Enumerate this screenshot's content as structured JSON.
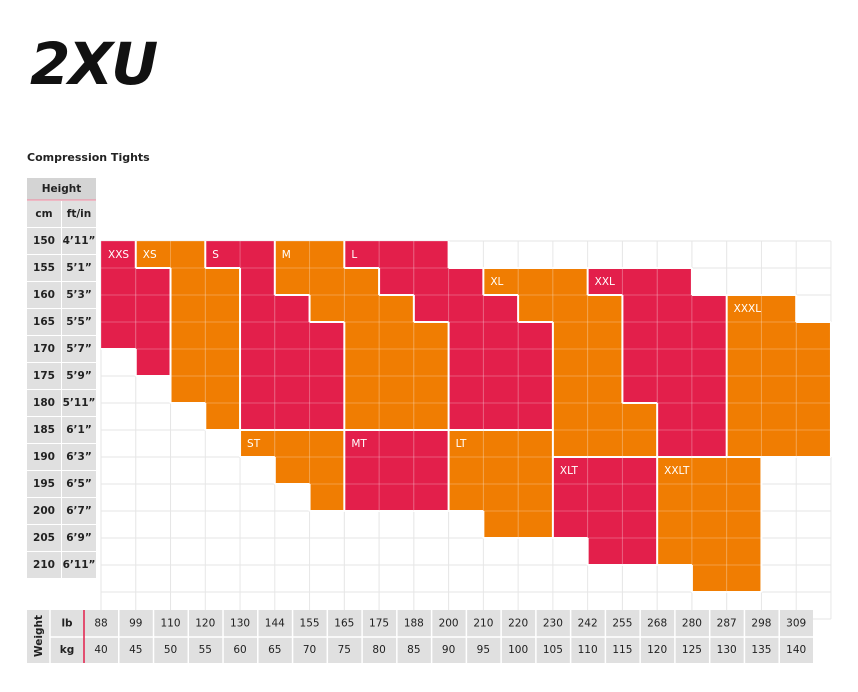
{
  "logo": "2XU",
  "title": "Compression Tights",
  "height_table": {
    "header": "Height",
    "columns": [
      "cm",
      "ft/in"
    ],
    "rows": [
      [
        "150",
        "4’11”"
      ],
      [
        "155",
        "5’1”"
      ],
      [
        "160",
        "5’3”"
      ],
      [
        "165",
        "5’5”"
      ],
      [
        "170",
        "5’7”"
      ],
      [
        "175",
        "5’9”"
      ],
      [
        "180",
        "5’11”"
      ],
      [
        "185",
        "6’1”"
      ],
      [
        "190",
        "6’3”"
      ],
      [
        "195",
        "6’5”"
      ],
      [
        "200",
        "6’7”"
      ],
      [
        "205",
        "6’9”"
      ],
      [
        "210",
        "6’11”"
      ]
    ]
  },
  "weight_table": {
    "header": "Weight",
    "rows": [
      {
        "unit": "lb",
        "values": [
          88,
          99,
          110,
          120,
          130,
          144,
          155,
          165,
          175,
          188,
          200,
          210,
          220,
          230,
          242,
          255,
          268,
          280,
          287,
          298,
          309
        ]
      },
      {
        "unit": "kg",
        "values": [
          40,
          45,
          50,
          55,
          60,
          65,
          70,
          75,
          80,
          85,
          90,
          95,
          100,
          105,
          110,
          115,
          120,
          125,
          130,
          135,
          140
        ]
      }
    ]
  },
  "sizes": [
    {
      "label": "XXS",
      "color": "#e31f4b",
      "cells": [
        [
          0,
          0,
          3
        ],
        [
          1,
          1,
          4
        ]
      ]
    },
    {
      "label": "XS",
      "color": "#f07d02",
      "cells": [
        [
          1,
          0,
          0
        ],
        [
          2,
          0,
          5
        ],
        [
          3,
          1,
          6
        ]
      ]
    },
    {
      "label": "S",
      "color": "#e31f4b",
      "cells": [
        [
          3,
          0,
          0
        ],
        [
          4,
          0,
          6
        ],
        [
          5,
          2,
          6
        ],
        [
          6,
          3,
          6
        ]
      ]
    },
    {
      "label": "M",
      "color": "#f07d02",
      "cells": [
        [
          5,
          0,
          1
        ],
        [
          6,
          0,
          2
        ],
        [
          7,
          1,
          6
        ],
        [
          8,
          2,
          6
        ],
        [
          9,
          3,
          6
        ]
      ]
    },
    {
      "label": "L",
      "color": "#e31f4b",
      "cells": [
        [
          7,
          0,
          0
        ],
        [
          8,
          0,
          1
        ],
        [
          9,
          0,
          2
        ],
        [
          10,
          1,
          6
        ],
        [
          11,
          2,
          6
        ],
        [
          12,
          3,
          6
        ]
      ]
    },
    {
      "label": "XL",
      "color": "#f07d02",
      "cells": [
        [
          11,
          1,
          1
        ],
        [
          12,
          1,
          2
        ],
        [
          13,
          1,
          7
        ],
        [
          14,
          2,
          7
        ],
        [
          15,
          6,
          7
        ]
      ]
    },
    {
      "label": "XXL",
      "color": "#e31f4b",
      "cells": [
        [
          14,
          1,
          1
        ],
        [
          15,
          1,
          5
        ],
        [
          16,
          1,
          7
        ],
        [
          17,
          2,
          7
        ]
      ]
    },
    {
      "label": "XXXL",
      "color": "#f07d02",
      "cells": [
        [
          18,
          2,
          7
        ],
        [
          19,
          2,
          7
        ],
        [
          20,
          3,
          7
        ]
      ]
    },
    {
      "label": "ST",
      "color": "#f07d02",
      "cells": [
        [
          4,
          7,
          7
        ],
        [
          5,
          7,
          8
        ],
        [
          6,
          7,
          9
        ]
      ]
    },
    {
      "label": "MT",
      "color": "#e31f4b",
      "cells": [
        [
          7,
          7,
          9
        ],
        [
          8,
          7,
          9
        ],
        [
          9,
          7,
          9
        ]
      ]
    },
    {
      "label": "LT",
      "color": "#f07d02",
      "cells": [
        [
          10,
          7,
          9
        ],
        [
          11,
          7,
          10
        ],
        [
          12,
          7,
          10
        ]
      ]
    },
    {
      "label": "XLT",
      "color": "#e31f4b",
      "cells": [
        [
          13,
          8,
          10
        ],
        [
          14,
          8,
          11
        ],
        [
          15,
          8,
          11
        ]
      ]
    },
    {
      "label": "XXLT",
      "color": "#f07d02",
      "cells": [
        [
          16,
          8,
          11
        ],
        [
          17,
          8,
          12
        ],
        [
          18,
          8,
          12
        ]
      ]
    }
  ]
}
